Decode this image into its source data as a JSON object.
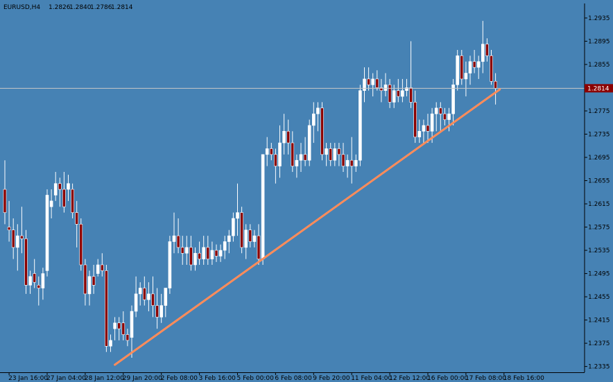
{
  "chart_data": {
    "type": "candlestick",
    "symbol": "EURUSD,H4",
    "header_values": [
      "1.2826",
      "1.2840",
      "1.2786",
      "1.2814"
    ],
    "current_price": 1.2814,
    "current_price_label": "1.2814",
    "ylim": [
      1.2325,
      1.296
    ],
    "y_ticks": [
      "1.2935",
      "1.2895",
      "1.2855",
      "1.2815",
      "1.2775",
      "1.2735",
      "1.2695",
      "1.2655",
      "1.2615",
      "1.2575",
      "1.2535",
      "1.2495",
      "1.2455",
      "1.2415",
      "1.2375",
      "1.2335"
    ],
    "x_ticks": [
      {
        "label": "23 Jan 16:00",
        "index": 1
      },
      {
        "label": "27 Jan 04:00",
        "index": 10
      },
      {
        "label": "28 Jan 12:00",
        "index": 19
      },
      {
        "label": "29 Jan 20:00",
        "index": 28
      },
      {
        "label": "2 Feb 08:00",
        "index": 37
      },
      {
        "label": "3 Feb 16:00",
        "index": 46
      },
      {
        "label": "5 Feb 00:00",
        "index": 55
      },
      {
        "label": "6 Feb 08:00",
        "index": 64
      },
      {
        "label": "9 Feb 20:00",
        "index": 73
      },
      {
        "label": "11 Feb 04:00",
        "index": 82
      },
      {
        "label": "12 Feb 12:00",
        "index": 91
      },
      {
        "label": "16 Feb 00:00",
        "index": 100
      },
      {
        "label": "17 Feb 08:00",
        "index": 109
      },
      {
        "label": "18 Feb 16:00",
        "index": 118
      }
    ],
    "candles": [
      [
        1.264,
        1.269,
        1.258,
        1.26
      ],
      [
        1.2575,
        1.262,
        1.255,
        1.257
      ],
      [
        1.257,
        1.259,
        1.252,
        1.254
      ],
      [
        1.254,
        1.258,
        1.25,
        1.256
      ],
      [
        1.256,
        1.261,
        1.253,
        1.2555
      ],
      [
        1.2555,
        1.257,
        1.246,
        1.2475
      ],
      [
        1.2475,
        1.25,
        1.246,
        1.249
      ],
      [
        1.2495,
        1.252,
        1.247,
        1.248
      ],
      [
        1.2475,
        1.249,
        1.244,
        1.247
      ],
      [
        1.247,
        1.2505,
        1.245,
        1.2495
      ],
      [
        1.25,
        1.264,
        1.249,
        1.263
      ],
      [
        1.261,
        1.264,
        1.259,
        1.262
      ],
      [
        1.263,
        1.267,
        1.262,
        1.265
      ],
      [
        1.265,
        1.266,
        1.261,
        1.264
      ],
      [
        1.264,
        1.267,
        1.26,
        1.261
      ],
      [
        1.264,
        1.2665,
        1.262,
        1.265
      ],
      [
        1.264,
        1.265,
        1.259,
        1.26
      ],
      [
        1.26,
        1.262,
        1.254,
        1.258
      ],
      [
        1.258,
        1.259,
        1.25,
        1.251
      ],
      [
        1.251,
        1.252,
        1.244,
        1.246
      ],
      [
        1.246,
        1.25,
        1.244,
        1.249
      ],
      [
        1.249,
        1.251,
        1.246,
        1.2475
      ],
      [
        1.2495,
        1.252,
        1.249,
        1.251
      ],
      [
        1.251,
        1.253,
        1.249,
        1.25
      ],
      [
        1.25,
        1.251,
        1.236,
        1.237
      ],
      [
        1.237,
        1.239,
        1.236,
        1.238
      ],
      [
        1.24,
        1.242,
        1.238,
        1.241
      ],
      [
        1.241,
        1.242,
        1.238,
        1.24
      ],
      [
        1.241,
        1.243,
        1.238,
        1.239
      ],
      [
        1.239,
        1.24,
        1.237,
        1.238
      ],
      [
        1.2385,
        1.244,
        1.235,
        1.243
      ],
      [
        1.243,
        1.249,
        1.242,
        1.246
      ],
      [
        1.246,
        1.248,
        1.244,
        1.247
      ],
      [
        1.247,
        1.249,
        1.244,
        1.245
      ],
      [
        1.245,
        1.248,
        1.243,
        1.246
      ],
      [
        1.246,
        1.249,
        1.242,
        1.244
      ],
      [
        1.244,
        1.247,
        1.24,
        1.242
      ],
      [
        1.242,
        1.246,
        1.241,
        1.244
      ],
      [
        1.244,
        1.247,
        1.242,
        1.247
      ],
      [
        1.247,
        1.256,
        1.246,
        1.255
      ],
      [
        1.255,
        1.26,
        1.253,
        1.256
      ],
      [
        1.256,
        1.259,
        1.253,
        1.254
      ],
      [
        1.254,
        1.256,
        1.251,
        1.253
      ],
      [
        1.253,
        1.256,
        1.251,
        1.254
      ],
      [
        1.254,
        1.256,
        1.25,
        1.251
      ],
      [
        1.251,
        1.254,
        1.25,
        1.253
      ],
      [
        1.253,
        1.255,
        1.251,
        1.252
      ],
      [
        1.252,
        1.256,
        1.251,
        1.254
      ],
      [
        1.254,
        1.256,
        1.251,
        1.252
      ],
      [
        1.252,
        1.255,
        1.251,
        1.2535
      ],
      [
        1.2535,
        1.2545,
        1.2515,
        1.2525
      ],
      [
        1.2525,
        1.2545,
        1.2515,
        1.2535
      ],
      [
        1.2535,
        1.256,
        1.252,
        1.255
      ],
      [
        1.255,
        1.257,
        1.253,
        1.256
      ],
      [
        1.256,
        1.26,
        1.255,
        1.259
      ],
      [
        1.259,
        1.265,
        1.256,
        1.26
      ],
      [
        1.26,
        1.261,
        1.253,
        1.254
      ],
      [
        1.254,
        1.258,
        1.252,
        1.257
      ],
      [
        1.257,
        1.258,
        1.254,
        1.255
      ],
      [
        1.255,
        1.257,
        1.254,
        1.256
      ],
      [
        1.256,
        1.258,
        1.251,
        1.252
      ],
      [
        1.252,
        1.27,
        1.251,
        1.27
      ],
      [
        1.27,
        1.273,
        1.268,
        1.271
      ],
      [
        1.271,
        1.272,
        1.269,
        1.27
      ],
      [
        1.27,
        1.271,
        1.265,
        1.268
      ],
      [
        1.268,
        1.275,
        1.266,
        1.272
      ],
      [
        1.272,
        1.277,
        1.27,
        1.274
      ],
      [
        1.274,
        1.276,
        1.27,
        1.272
      ],
      [
        1.272,
        1.274,
        1.267,
        1.268
      ],
      [
        1.268,
        1.27,
        1.266,
        1.269
      ],
      [
        1.269,
        1.272,
        1.267,
        1.27
      ],
      [
        1.27,
        1.273,
        1.268,
        1.269
      ],
      [
        1.269,
        1.276,
        1.268,
        1.275
      ],
      [
        1.275,
        1.279,
        1.272,
        1.277
      ],
      [
        1.277,
        1.279,
        1.274,
        1.278
      ],
      [
        1.278,
        1.279,
        1.269,
        1.27
      ],
      [
        1.27,
        1.272,
        1.268,
        1.271
      ],
      [
        1.271,
        1.272,
        1.268,
        1.269
      ],
      [
        1.269,
        1.272,
        1.268,
        1.271
      ],
      [
        1.271,
        1.272,
        1.268,
        1.27
      ],
      [
        1.27,
        1.272,
        1.267,
        1.268
      ],
      [
        1.268,
        1.27,
        1.266,
        1.269
      ],
      [
        1.269,
        1.273,
        1.265,
        1.268
      ],
      [
        1.268,
        1.27,
        1.267,
        1.269
      ],
      [
        1.269,
        1.282,
        1.268,
        1.281
      ],
      [
        1.281,
        1.285,
        1.279,
        1.283
      ],
      [
        1.283,
        1.285,
        1.281,
        1.282
      ],
      [
        1.282,
        1.284,
        1.28,
        1.283
      ],
      [
        1.283,
        1.2845,
        1.281,
        1.2815
      ],
      [
        1.2815,
        1.283,
        1.279,
        1.281
      ],
      [
        1.281,
        1.284,
        1.28,
        1.282
      ],
      [
        1.282,
        1.283,
        1.278,
        1.279
      ],
      [
        1.279,
        1.282,
        1.278,
        1.281
      ],
      [
        1.281,
        1.283,
        1.279,
        1.28
      ],
      [
        1.28,
        1.283,
        1.279,
        1.281
      ],
      [
        1.281,
        1.283,
        1.28,
        1.2815
      ],
      [
        1.2815,
        1.2895,
        1.278,
        1.279
      ],
      [
        1.279,
        1.281,
        1.272,
        1.273
      ],
      [
        1.273,
        1.276,
        1.272,
        1.274
      ],
      [
        1.274,
        1.276,
        1.272,
        1.275
      ],
      [
        1.275,
        1.277,
        1.272,
        1.274
      ],
      [
        1.274,
        1.278,
        1.272,
        1.277
      ],
      [
        1.277,
        1.279,
        1.274,
        1.278
      ],
      [
        1.278,
        1.279,
        1.274,
        1.277
      ],
      [
        1.277,
        1.278,
        1.275,
        1.276
      ],
      [
        1.276,
        1.278,
        1.274,
        1.277
      ],
      [
        1.277,
        1.283,
        1.275,
        1.282
      ],
      [
        1.282,
        1.288,
        1.281,
        1.287
      ],
      [
        1.287,
        1.288,
        1.282,
        1.283
      ],
      [
        1.283,
        1.286,
        1.28,
        1.284
      ],
      [
        1.284,
        1.287,
        1.282,
        1.286
      ],
      [
        1.286,
        1.288,
        1.284,
        1.285
      ],
      [
        1.285,
        1.287,
        1.283,
        1.286
      ],
      [
        1.286,
        1.293,
        1.284,
        1.289
      ],
      [
        1.289,
        1.29,
        1.286,
        1.287
      ],
      [
        1.287,
        1.288,
        1.282,
        1.2826
      ],
      [
        1.2826,
        1.284,
        1.2786,
        1.2814
      ]
    ],
    "trendline": {
      "start": {
        "index": 26,
        "price": 1.2338
      },
      "end": {
        "index": 117,
        "price": 1.2812
      }
    },
    "colors": {
      "background": "#4682b4",
      "bull": "#ffffff",
      "bear": "#8b0000",
      "wick": "#ffffff",
      "trendline": "#ff8c5a",
      "current_line": "#c8c8c8",
      "current_label_bg": "#8b0000"
    }
  }
}
